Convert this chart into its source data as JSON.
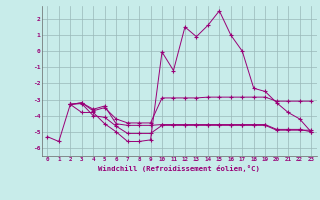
{
  "xlabel": "Windchill (Refroidissement éolien,°C)",
  "background_color": "#c8ecea",
  "grid_color": "#9ab8b8",
  "line_color": "#990077",
  "xlim": [
    -0.5,
    23.5
  ],
  "ylim": [
    -6.5,
    2.8
  ],
  "yticks": [
    -6,
    -5,
    -4,
    -3,
    -2,
    -1,
    0,
    1,
    2
  ],
  "xticks": [
    0,
    1,
    2,
    3,
    4,
    5,
    6,
    7,
    8,
    9,
    10,
    11,
    12,
    13,
    14,
    15,
    16,
    17,
    18,
    19,
    20,
    21,
    22,
    23
  ],
  "series1_x": [
    0,
    1,
    2,
    3,
    4,
    5,
    6,
    7,
    8,
    9,
    10,
    11,
    12,
    13,
    14,
    15,
    16,
    17,
    18,
    19,
    20,
    21,
    22,
    23
  ],
  "series1_y": [
    -5.3,
    -5.6,
    -3.3,
    -3.8,
    -3.8,
    -4.5,
    -5.0,
    -5.6,
    -5.6,
    -5.5,
    -0.05,
    -1.2,
    1.5,
    0.9,
    1.6,
    2.5,
    1.0,
    0.0,
    -2.3,
    -2.5,
    -3.2,
    -3.8,
    -4.2,
    -5.0
  ],
  "series2_x": [
    2,
    3,
    4,
    5,
    6,
    7,
    8,
    9,
    10,
    11,
    12,
    13,
    14,
    15,
    16,
    17,
    18,
    19,
    20,
    21,
    22,
    23
  ],
  "series2_y": [
    -3.3,
    -3.2,
    -3.7,
    -3.5,
    -4.2,
    -4.45,
    -4.45,
    -4.45,
    -2.9,
    -2.9,
    -2.9,
    -2.9,
    -2.85,
    -2.85,
    -2.85,
    -2.85,
    -2.85,
    -2.85,
    -3.1,
    -3.1,
    -3.1,
    -3.1
  ],
  "series3_x": [
    2,
    3,
    4,
    5,
    6,
    7,
    8,
    9,
    10,
    11,
    12,
    13,
    14,
    15,
    16,
    17,
    18,
    19,
    20,
    21,
    22,
    23
  ],
  "series3_y": [
    -3.3,
    -3.2,
    -3.6,
    -3.4,
    -4.5,
    -4.6,
    -4.6,
    -4.6,
    -4.55,
    -4.55,
    -4.55,
    -4.55,
    -4.55,
    -4.55,
    -4.55,
    -4.55,
    -4.55,
    -4.55,
    -4.85,
    -4.85,
    -4.85,
    -5.0
  ],
  "series4_x": [
    2,
    3,
    4,
    5,
    6,
    7,
    8,
    9,
    10,
    11,
    12,
    13,
    14,
    15,
    16,
    17,
    18,
    19,
    20,
    21,
    22,
    23
  ],
  "series4_y": [
    -3.3,
    -3.25,
    -4.0,
    -4.1,
    -4.65,
    -5.1,
    -5.1,
    -5.1,
    -4.6,
    -4.6,
    -4.6,
    -4.6,
    -4.6,
    -4.6,
    -4.6,
    -4.6,
    -4.6,
    -4.6,
    -4.9,
    -4.9,
    -4.9,
    -4.9
  ]
}
